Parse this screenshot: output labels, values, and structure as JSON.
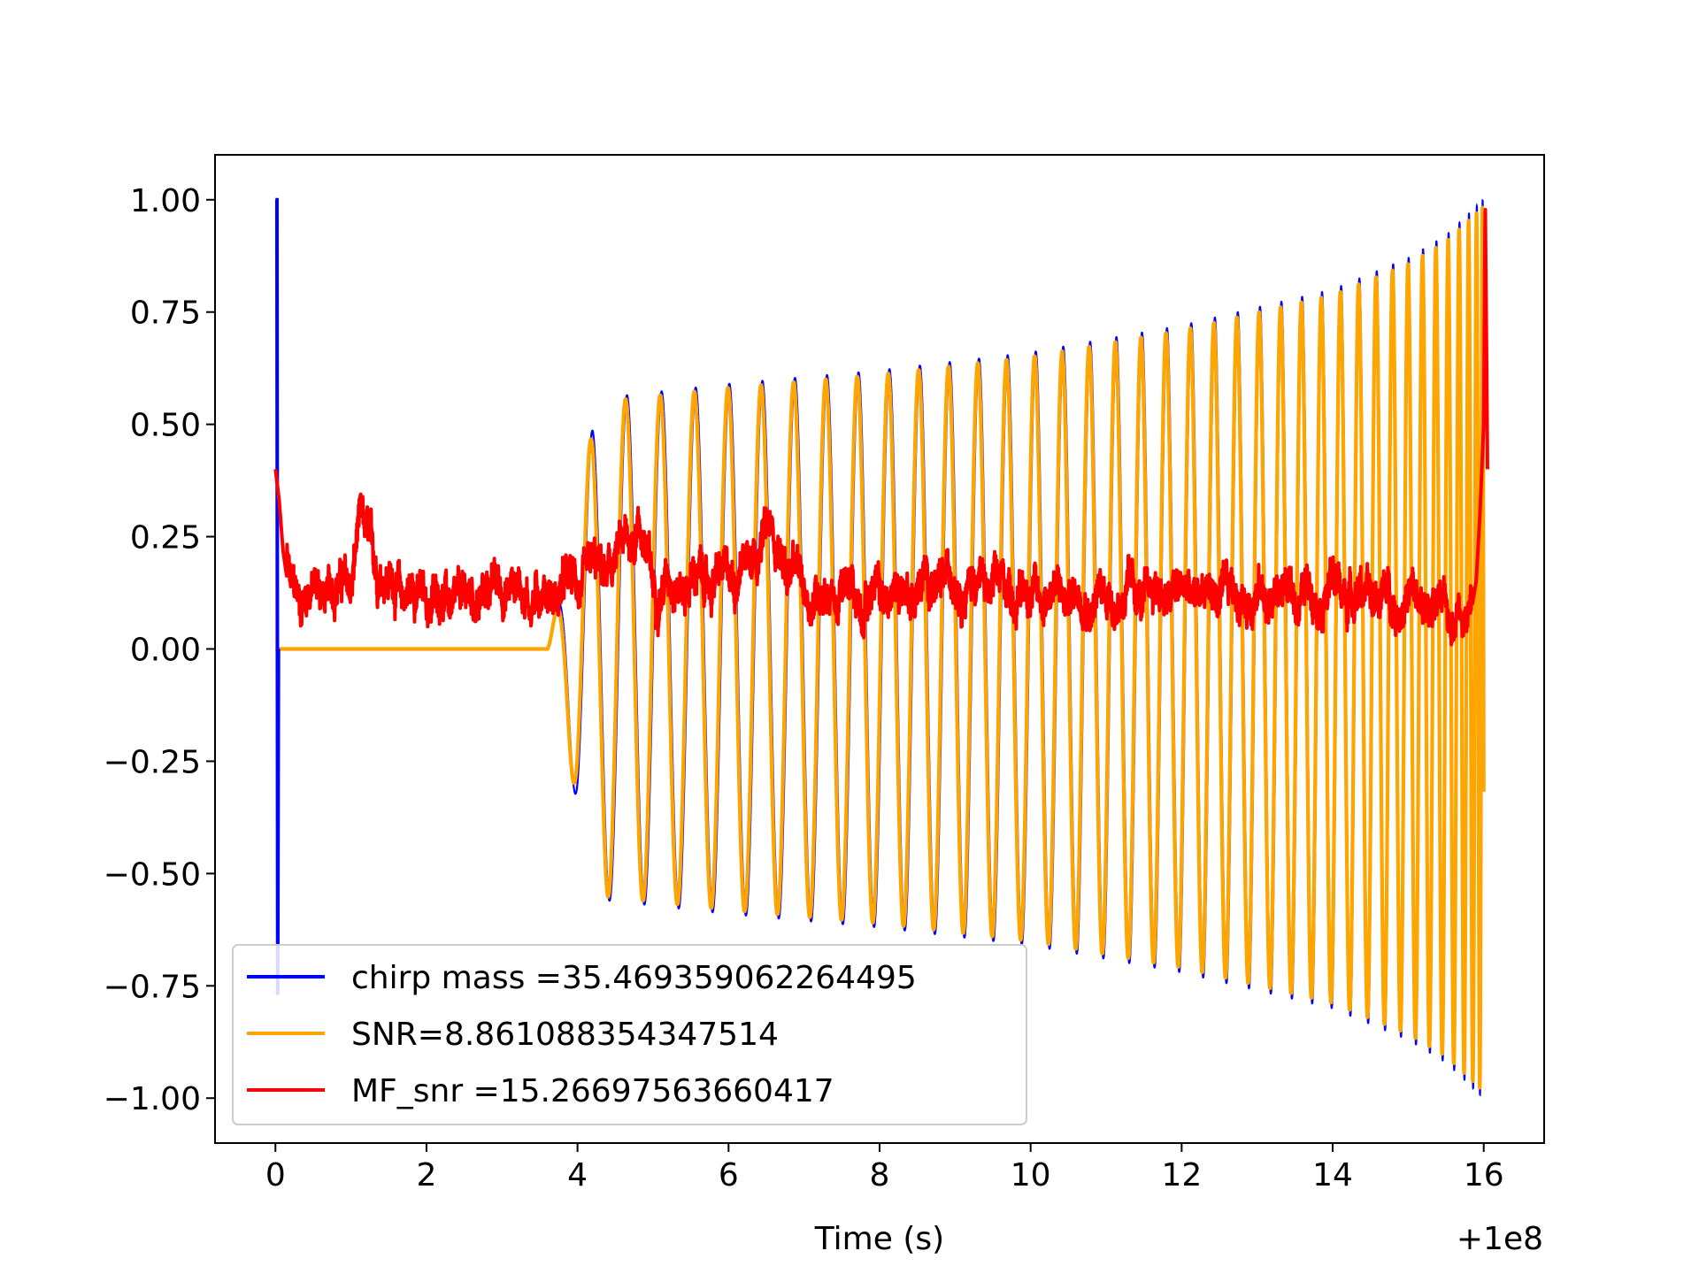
{
  "chart_data": {
    "type": "line",
    "title": "",
    "xlabel": "Time (s)",
    "ylabel": "",
    "x_offset_label": "+1e8",
    "xlim": [
      -0.8,
      16.8
    ],
    "ylim": [
      -1.1,
      1.1
    ],
    "x_ticks": [
      {
        "value": 0,
        "label": "0"
      },
      {
        "value": 2,
        "label": "2"
      },
      {
        "value": 4,
        "label": "4"
      },
      {
        "value": 6,
        "label": "6"
      },
      {
        "value": 8,
        "label": "8"
      },
      {
        "value": 10,
        "label": "10"
      },
      {
        "value": 12,
        "label": "12"
      },
      {
        "value": 14,
        "label": "14"
      },
      {
        "value": 16,
        "label": "16"
      }
    ],
    "y_ticks": [
      {
        "value": 1.0,
        "label": "1.00"
      },
      {
        "value": 0.75,
        "label": "0.75"
      },
      {
        "value": 0.5,
        "label": "0.50"
      },
      {
        "value": 0.25,
        "label": "0.25"
      },
      {
        "value": 0.0,
        "label": "0.00"
      },
      {
        "value": -0.25,
        "label": "−0.25"
      },
      {
        "value": -0.5,
        "label": "−0.50"
      },
      {
        "value": -0.75,
        "label": "−0.75"
      },
      {
        "value": -1.0,
        "label": "−1.00"
      }
    ],
    "legend_position": "bottom-left",
    "grid": false,
    "series": [
      {
        "name": "chirp mass =35.469359062264495",
        "color": "#0000ff",
        "kind": "chirp",
        "onset_x": 3.6,
        "end_x": 16.0,
        "envelope_points": [
          [
            3.6,
            0.0
          ],
          [
            3.8,
            0.15
          ],
          [
            4.0,
            0.36
          ],
          [
            4.2,
            0.49
          ],
          [
            4.4,
            0.56
          ],
          [
            6.0,
            0.59
          ],
          [
            8.0,
            0.62
          ],
          [
            10.0,
            0.66
          ],
          [
            12.0,
            0.72
          ],
          [
            14.0,
            0.8
          ],
          [
            15.0,
            0.87
          ],
          [
            15.5,
            0.92
          ],
          [
            16.0,
            1.0
          ]
        ],
        "spike_points": [
          [
            0.0,
            1.0
          ],
          [
            0.02,
            1.0
          ],
          [
            0.03,
            -0.77
          ],
          [
            0.04,
            0.0
          ]
        ]
      },
      {
        "name": "SNR=8.861088354347514",
        "color": "#ffa500",
        "kind": "chirp_fill",
        "flat_segment": [
          [
            0.0,
            0.0
          ],
          [
            3.6,
            0.0
          ]
        ]
      },
      {
        "name": "MF_snr =15.26697563660417",
        "color": "#ff0000",
        "kind": "noise",
        "points": [
          [
            0.0,
            0.4
          ],
          [
            0.05,
            0.33
          ],
          [
            0.1,
            0.22
          ],
          [
            0.2,
            0.1
          ],
          [
            0.5,
            0.1
          ],
          [
            1.0,
            0.12
          ],
          [
            1.1,
            0.25
          ],
          [
            1.5,
            0.12
          ],
          [
            2.0,
            0.09
          ],
          [
            2.5,
            0.08
          ],
          [
            3.0,
            0.12
          ],
          [
            3.5,
            0.09
          ],
          [
            4.0,
            0.12
          ],
          [
            4.5,
            0.16
          ],
          [
            4.8,
            0.26
          ],
          [
            5.0,
            0.12
          ],
          [
            6.0,
            0.13
          ],
          [
            6.5,
            0.24
          ],
          [
            7.0,
            0.1
          ],
          [
            8.0,
            0.09
          ],
          [
            9.0,
            0.13
          ],
          [
            10.0,
            0.1
          ],
          [
            11.0,
            0.09
          ],
          [
            12.0,
            0.1
          ],
          [
            13.0,
            0.09
          ],
          [
            14.0,
            0.11
          ],
          [
            15.0,
            0.08
          ],
          [
            15.8,
            0.05
          ],
          [
            15.9,
            0.15
          ],
          [
            15.95,
            0.3
          ],
          [
            16.0,
            0.5
          ],
          [
            16.02,
            1.0
          ],
          [
            16.05,
            0.4
          ]
        ]
      }
    ]
  }
}
